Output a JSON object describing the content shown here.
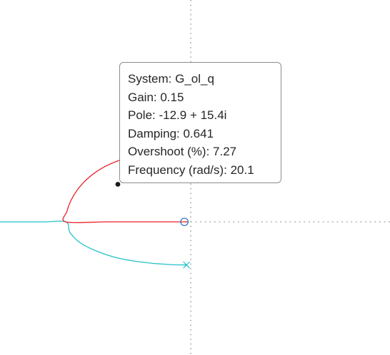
{
  "chart_data": {
    "type": "line",
    "title": "",
    "xlabel": "",
    "ylabel": "",
    "grid": false,
    "axes": {
      "x": 0,
      "y": 0
    },
    "xlim": [
      -45,
      47
    ],
    "ylim": [
      -31.5,
      52.5
    ],
    "series": [
      {
        "color": "#e8232b",
        "points": [
          [
            -0.5,
            0
          ],
          [
            -10,
            0
          ],
          [
            -20,
            0
          ],
          [
            -29.5,
            0
          ],
          [
            -29.2,
            2.5
          ],
          [
            -28.3,
            5
          ],
          [
            -26.8,
            7.5
          ],
          [
            -24.6,
            10
          ],
          [
            -21.3,
            12.5
          ],
          [
            -17,
            14.5
          ],
          [
            -13.2,
            15.4
          ],
          [
            -12.9,
            15.4
          ]
        ]
      },
      {
        "color": "#24c1c8",
        "points": [
          [
            -45,
            0
          ],
          [
            -35,
            0
          ],
          [
            -29.5,
            0
          ],
          [
            -28.5,
            -2.5
          ],
          [
            -26,
            -5
          ],
          [
            -22,
            -7
          ],
          [
            -17,
            -8.6
          ],
          [
            -11,
            -9.6
          ],
          [
            -5,
            -10.1
          ],
          [
            -0.8,
            -10.2
          ]
        ]
      }
    ],
    "markers": {
      "zero": {
        "symbol": "circle",
        "color": "#2e6fb8",
        "x": -1.5,
        "y": 0
      },
      "pole": {
        "symbol": "x",
        "color": "#24c1c8",
        "x": -1,
        "y": -10.2
      },
      "selected": {
        "symbol": "dot",
        "color": "#1a1a1a",
        "x": -17.2,
        "y": 8.9
      }
    },
    "datatip": {
      "system": "System: G_ol_q",
      "gain": "Gain: 0.15",
      "pole": "Pole: -12.9 + 15.4i",
      "damping": "Damping: 0.641",
      "overshoot": "Overshoot (%): 7.27",
      "frequency": "Frequency (rad/s): 20.1"
    }
  }
}
